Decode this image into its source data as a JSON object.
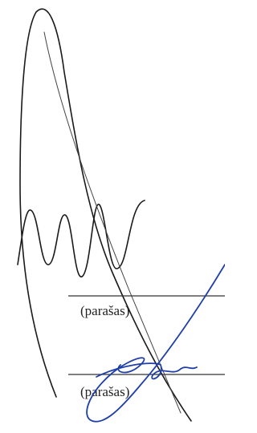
{
  "signatures": [
    {
      "label": "(parašas)"
    },
    {
      "label": "(parašas)"
    }
  ]
}
